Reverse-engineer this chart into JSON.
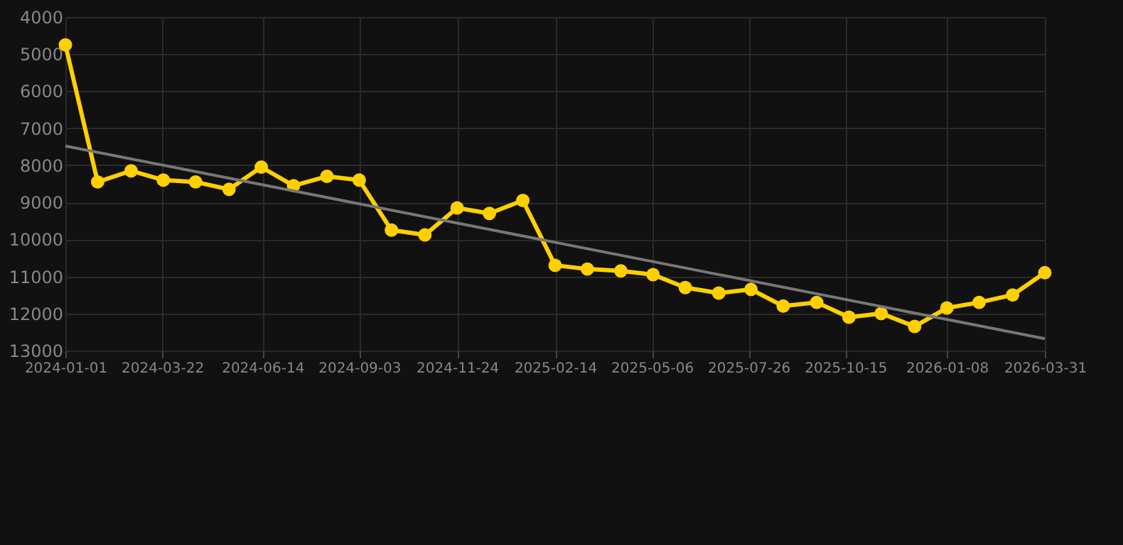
{
  "chart_data": {
    "type": "line",
    "x": [
      "2024-01-01",
      "2024-01-28",
      "2024-02-25",
      "2024-03-23",
      "2024-04-19",
      "2024-05-17",
      "2024-06-13",
      "2024-07-10",
      "2024-08-07",
      "2024-09-03",
      "2024-09-30",
      "2024-10-28",
      "2024-11-24",
      "2024-12-21",
      "2025-01-18",
      "2025-02-14",
      "2025-03-13",
      "2025-04-10",
      "2025-05-07",
      "2025-06-03",
      "2025-07-01",
      "2025-07-28",
      "2025-08-24",
      "2025-09-21",
      "2025-10-18",
      "2025-11-14",
      "2025-12-12",
      "2026-01-08",
      "2026-02-04",
      "2026-03-04",
      "2026-03-31"
    ],
    "series": [
      {
        "color": "#ffd000",
        "marker": "circle",
        "values": [
          4750,
          8450,
          8150,
          8400,
          8450,
          8650,
          8050,
          8550,
          8300,
          8400,
          9750,
          9880,
          9150,
          9300,
          8950,
          10700,
          10800,
          10850,
          10950,
          11300,
          11450,
          11350,
          11800,
          11700,
          12100,
          12000,
          12350,
          11850,
          11700,
          11500,
          10900
        ]
      },
      {
        "type": "line",
        "color": "#777777",
        "marker": "none",
        "x": [
          "2024-01-01",
          "2026-03-31"
        ],
        "values": [
          7480,
          12680
        ]
      }
    ],
    "xlim": [
      "2024-01-01",
      "2026-03-31"
    ],
    "xticks": [
      "2024-01-01",
      "2024-03-22",
      "2024-06-14",
      "2024-09-03",
      "2024-11-24",
      "2025-02-14",
      "2025-05-06",
      "2025-07-26",
      "2025-10-15",
      "2026-01-08",
      "2026-03-31"
    ],
    "ylim": [
      13000,
      4000
    ],
    "yticks": [
      4000,
      5000,
      6000,
      7000,
      8000,
      9000,
      10000,
      11000,
      12000,
      13000
    ],
    "grid": true,
    "line_style": "solid"
  }
}
